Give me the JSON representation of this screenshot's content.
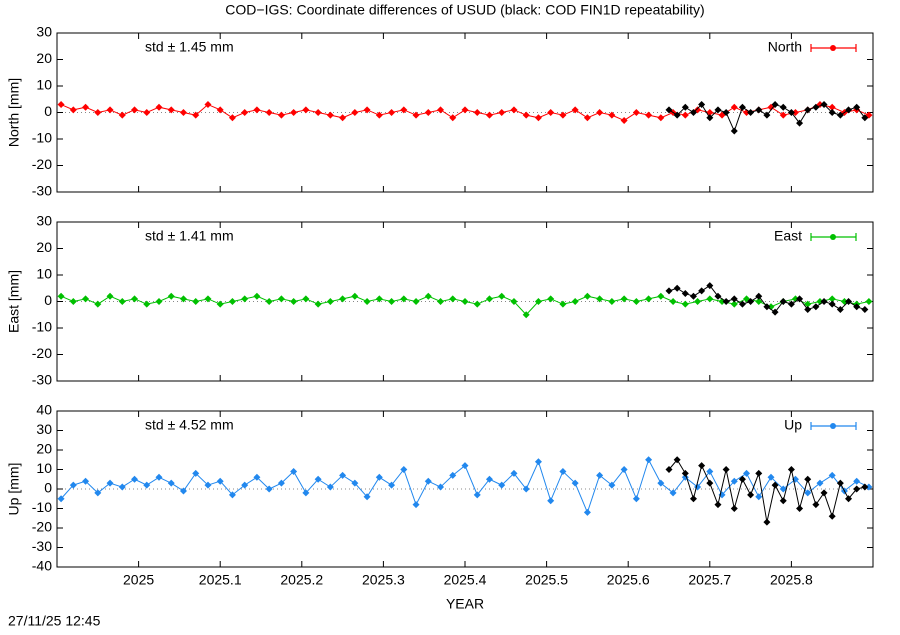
{
  "title": "COD−IGS: Coordinate differences of USUD (black: COD FIN1D repeatability)",
  "xlabel": "YEAR",
  "timestamp": "27/11/25 12:45",
  "chart_data": [
    {
      "type": "line",
      "ylabel": "North [mm]",
      "annotation": "std ± 1.45 mm",
      "xlim": [
        2024.9,
        2025.9
      ],
      "xticks": [
        2025,
        2025.1,
        2025.2,
        2025.3,
        2025.4,
        2025.5,
        2025.6,
        2025.7,
        2025.8
      ],
      "ylim": [
        -30,
        30
      ],
      "yticks": [
        -30,
        -20,
        -10,
        0,
        10,
        20,
        30
      ],
      "series": [
        {
          "name": "North",
          "color": "#ff0000",
          "x": [
            2024.905,
            2024.92,
            2024.935,
            2024.95,
            2024.965,
            2024.98,
            2024.995,
            2025.01,
            2025.025,
            2025.04,
            2025.055,
            2025.07,
            2025.085,
            2025.1,
            2025.115,
            2025.13,
            2025.145,
            2025.16,
            2025.175,
            2025.19,
            2025.205,
            2025.22,
            2025.235,
            2025.25,
            2025.265,
            2025.28,
            2025.295,
            2025.31,
            2025.325,
            2025.34,
            2025.355,
            2025.37,
            2025.385,
            2025.4,
            2025.415,
            2025.43,
            2025.445,
            2025.46,
            2025.475,
            2025.49,
            2025.505,
            2025.52,
            2025.535,
            2025.55,
            2025.565,
            2025.58,
            2025.595,
            2025.61,
            2025.625,
            2025.64,
            2025.655,
            2025.67,
            2025.685,
            2025.7,
            2025.715,
            2025.73,
            2025.745,
            2025.76,
            2025.775,
            2025.79,
            2025.805,
            2025.82,
            2025.835,
            2025.85,
            2025.865,
            2025.88,
            2025.895
          ],
          "values": [
            3,
            1,
            2,
            0,
            1,
            -1,
            1,
            0,
            2,
            1,
            0,
            -1,
            3,
            1,
            -2,
            0,
            1,
            0,
            -1,
            0,
            1,
            0,
            -1,
            -2,
            0,
            1,
            -1,
            0,
            1,
            -1,
            0,
            1,
            -2,
            1,
            0,
            -1,
            0,
            1,
            -1,
            -2,
            0,
            -1,
            1,
            -2,
            0,
            -1,
            -3,
            0,
            -1,
            -2,
            0,
            -1,
            1,
            0,
            -1,
            2,
            0,
            1,
            2,
            -1,
            0,
            1,
            3,
            2,
            0,
            1,
            -1
          ]
        },
        {
          "color": "#000000",
          "x": [
            2025.65,
            2025.66,
            2025.67,
            2025.68,
            2025.69,
            2025.7,
            2025.71,
            2025.72,
            2025.73,
            2025.74,
            2025.75,
            2025.76,
            2025.77,
            2025.78,
            2025.79,
            2025.8,
            2025.81,
            2025.82,
            2025.83,
            2025.84,
            2025.85,
            2025.86,
            2025.87,
            2025.88,
            2025.89
          ],
          "values": [
            1,
            -1,
            2,
            0,
            3,
            -2,
            1,
            0,
            -7,
            2,
            0,
            1,
            -1,
            3,
            2,
            0,
            -4,
            1,
            2,
            3,
            0,
            -1,
            1,
            2,
            -2
          ]
        }
      ]
    },
    {
      "type": "line",
      "ylabel": "East [mm]",
      "annotation": "std ± 1.41 mm",
      "xlim": [
        2024.9,
        2025.9
      ],
      "xticks": [
        2025,
        2025.1,
        2025.2,
        2025.3,
        2025.4,
        2025.5,
        2025.6,
        2025.7,
        2025.8
      ],
      "ylim": [
        -30,
        30
      ],
      "yticks": [
        -30,
        -20,
        -10,
        0,
        10,
        20,
        30
      ],
      "series": [
        {
          "name": "East",
          "color": "#00c000",
          "x": [
            2024.905,
            2024.92,
            2024.935,
            2024.95,
            2024.965,
            2024.98,
            2024.995,
            2025.01,
            2025.025,
            2025.04,
            2025.055,
            2025.07,
            2025.085,
            2025.1,
            2025.115,
            2025.13,
            2025.145,
            2025.16,
            2025.175,
            2025.19,
            2025.205,
            2025.22,
            2025.235,
            2025.25,
            2025.265,
            2025.28,
            2025.295,
            2025.31,
            2025.325,
            2025.34,
            2025.355,
            2025.37,
            2025.385,
            2025.4,
            2025.415,
            2025.43,
            2025.445,
            2025.46,
            2025.475,
            2025.49,
            2025.505,
            2025.52,
            2025.535,
            2025.55,
            2025.565,
            2025.58,
            2025.595,
            2025.61,
            2025.625,
            2025.64,
            2025.655,
            2025.67,
            2025.685,
            2025.7,
            2025.715,
            2025.73,
            2025.745,
            2025.76,
            2025.775,
            2025.79,
            2025.805,
            2025.82,
            2025.835,
            2025.85,
            2025.865,
            2025.88,
            2025.895
          ],
          "values": [
            2,
            0,
            1,
            -1,
            2,
            0,
            1,
            -1,
            0,
            2,
            1,
            0,
            1,
            -1,
            0,
            1,
            2,
            0,
            1,
            0,
            1,
            -1,
            0,
            1,
            2,
            0,
            1,
            0,
            1,
            0,
            2,
            0,
            1,
            0,
            -1,
            1,
            2,
            0,
            -5,
            0,
            1,
            -1,
            0,
            2,
            1,
            0,
            1,
            0,
            1,
            2,
            0,
            -1,
            0,
            1,
            0,
            -1,
            1,
            0,
            -2,
            0,
            1,
            -1,
            0,
            1,
            0,
            -1,
            0
          ]
        },
        {
          "color": "#000000",
          "x": [
            2025.65,
            2025.66,
            2025.67,
            2025.68,
            2025.69,
            2025.7,
            2025.71,
            2025.72,
            2025.73,
            2025.74,
            2025.75,
            2025.76,
            2025.77,
            2025.78,
            2025.79,
            2025.8,
            2025.81,
            2025.82,
            2025.83,
            2025.84,
            2025.85,
            2025.86,
            2025.87,
            2025.88,
            2025.89
          ],
          "values": [
            4,
            5,
            3,
            2,
            4,
            6,
            2,
            0,
            1,
            -1,
            0,
            2,
            -2,
            -4,
            0,
            -1,
            1,
            -3,
            -2,
            0,
            -1,
            -3,
            0,
            -2,
            -3
          ]
        }
      ]
    },
    {
      "type": "line",
      "ylabel": "Up [mm]",
      "annotation": "std ± 4.52 mm",
      "xlim": [
        2024.9,
        2025.9
      ],
      "xticks": [
        2025,
        2025.1,
        2025.2,
        2025.3,
        2025.4,
        2025.5,
        2025.6,
        2025.7,
        2025.8
      ],
      "ylim": [
        -40,
        40
      ],
      "yticks": [
        -40,
        -30,
        -20,
        -10,
        0,
        10,
        20,
        30,
        40
      ],
      "series": [
        {
          "name": "Up",
          "color": "#2288ee",
          "x": [
            2024.905,
            2024.92,
            2024.935,
            2024.95,
            2024.965,
            2024.98,
            2024.995,
            2025.01,
            2025.025,
            2025.04,
            2025.055,
            2025.07,
            2025.085,
            2025.1,
            2025.115,
            2025.13,
            2025.145,
            2025.16,
            2025.175,
            2025.19,
            2025.205,
            2025.22,
            2025.235,
            2025.25,
            2025.265,
            2025.28,
            2025.295,
            2025.31,
            2025.325,
            2025.34,
            2025.355,
            2025.37,
            2025.385,
            2025.4,
            2025.415,
            2025.43,
            2025.445,
            2025.46,
            2025.475,
            2025.49,
            2025.505,
            2025.52,
            2025.535,
            2025.55,
            2025.565,
            2025.58,
            2025.595,
            2025.61,
            2025.625,
            2025.64,
            2025.655,
            2025.67,
            2025.685,
            2025.7,
            2025.715,
            2025.73,
            2025.745,
            2025.76,
            2025.775,
            2025.79,
            2025.805,
            2025.82,
            2025.835,
            2025.85,
            2025.865,
            2025.88,
            2025.895
          ],
          "values": [
            -5,
            2,
            4,
            -2,
            3,
            1,
            5,
            2,
            6,
            3,
            -1,
            8,
            2,
            4,
            -3,
            2,
            6,
            0,
            3,
            9,
            -2,
            5,
            1,
            7,
            3,
            -4,
            6,
            2,
            10,
            -8,
            4,
            1,
            7,
            12,
            -3,
            5,
            2,
            8,
            0,
            14,
            -6,
            9,
            3,
            -12,
            7,
            2,
            10,
            -5,
            15,
            3,
            -2,
            6,
            1,
            9,
            -3,
            4,
            8,
            -4,
            6,
            0,
            5,
            -2,
            3,
            7,
            -1,
            4,
            1
          ]
        },
        {
          "color": "#000000",
          "x": [
            2025.65,
            2025.66,
            2025.67,
            2025.68,
            2025.69,
            2025.7,
            2025.71,
            2025.72,
            2025.73,
            2025.74,
            2025.75,
            2025.76,
            2025.77,
            2025.78,
            2025.79,
            2025.8,
            2025.81,
            2025.82,
            2025.83,
            2025.84,
            2025.85,
            2025.86,
            2025.87,
            2025.88,
            2025.89
          ],
          "values": [
            10,
            15,
            8,
            -5,
            12,
            3,
            -8,
            10,
            -10,
            5,
            -3,
            8,
            -17,
            2,
            -6,
            10,
            -10,
            5,
            -8,
            -2,
            -14,
            3,
            -5,
            0,
            1
          ]
        }
      ]
    }
  ]
}
